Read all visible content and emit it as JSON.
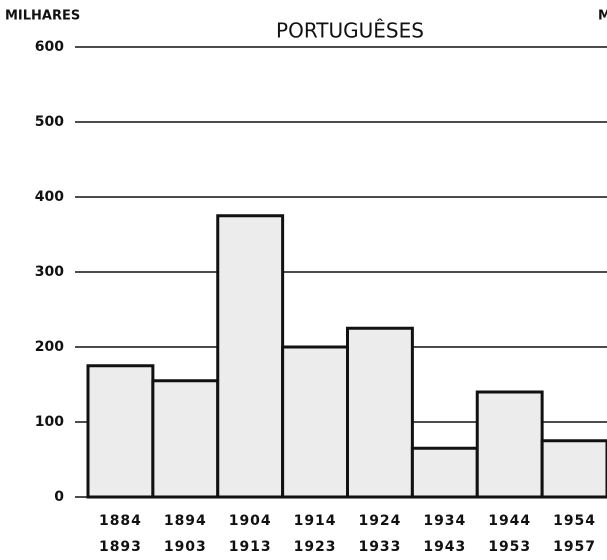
{
  "chart_data": {
    "type": "bar",
    "title": "PORTUGUÊSES",
    "y_label": "MILHARES",
    "right_label": "M",
    "categories": [
      "1884\n1893",
      "1894\n1903",
      "1904\n1913",
      "1914\n1923",
      "1924\n1933",
      "1934\n1943",
      "1944\n1953",
      "1954\n1957"
    ],
    "values": [
      175,
      155,
      375,
      200,
      225,
      65,
      140,
      75
    ],
    "color": "#ececec",
    "ylim": [
      0,
      600
    ],
    "yticks": [
      0,
      100,
      200,
      300,
      400,
      500,
      600
    ],
    "grid": true
  }
}
